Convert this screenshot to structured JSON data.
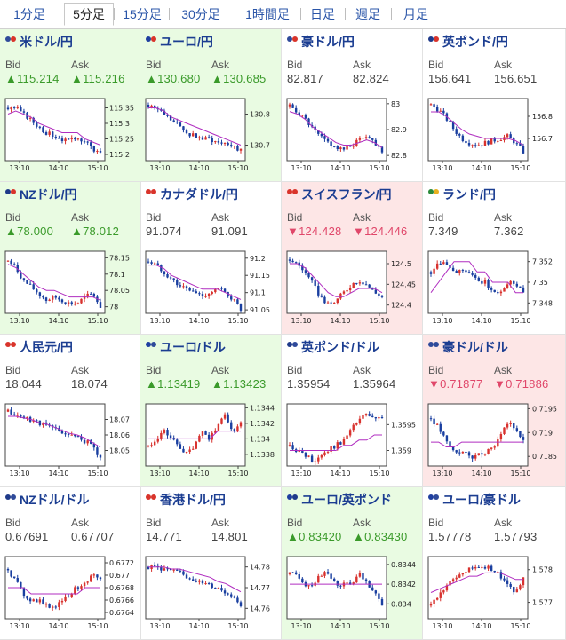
{
  "tabs": [
    "1分足",
    "5分足",
    "15分足",
    "30分足",
    "1時間足",
    "日足",
    "週足",
    "月足"
  ],
  "active_tab": "5分足",
  "bid_label": "Bid",
  "ask_label": "Ask",
  "time_ticks": [
    "13:10",
    "14:10",
    "15:10"
  ],
  "colors": {
    "up_bg": "#e9fbe2",
    "down_bg": "#fde6e6",
    "up_text": "#3a9a2a",
    "down_text": "#e0476a",
    "bull": "#d8322e",
    "bear": "#1a3fa0",
    "ma": "#b02ec0",
    "ma2": "#2aa0a0"
  },
  "pairs": [
    {
      "name": "米ドル/円",
      "bid": "▲115.214",
      "ask": "▲115.216",
      "state": "up",
      "flags": [
        "#2f4a9a",
        "#d9342b"
      ],
      "chart_data": {
        "type": "candlestick",
        "y_ticks": [
          "115.35",
          "115.3",
          "115.25",
          "115.2"
        ],
        "y_range": [
          115.18,
          115.38
        ],
        "trend": [
          115.35,
          115.35,
          115.33,
          115.31,
          115.29,
          115.27,
          115.26,
          115.25,
          115.24,
          115.26,
          115.24,
          115.22,
          115.2
        ],
        "ma": [
          115.33,
          115.34,
          115.33,
          115.32,
          115.3,
          115.29,
          115.28,
          115.27,
          115.27,
          115.27,
          115.25,
          115.24,
          115.23
        ]
      }
    },
    {
      "name": "ユーロ/円",
      "bid": "▲130.680",
      "ask": "▲130.685",
      "state": "up",
      "flags": [
        "#1f3fa0",
        "#d9342b"
      ],
      "chart_data": {
        "type": "candlestick",
        "y_ticks": [
          "130.8",
          "130.7"
        ],
        "y_range": [
          130.65,
          130.85
        ],
        "trend": [
          130.83,
          130.82,
          130.8,
          130.78,
          130.76,
          130.74,
          130.73,
          130.72,
          130.72,
          130.71,
          130.71,
          130.7,
          130.68
        ],
        "ma": [
          130.82,
          130.82,
          130.81,
          130.79,
          130.78,
          130.77,
          130.76,
          130.75,
          130.74,
          130.73,
          130.72,
          130.71,
          130.7
        ]
      }
    },
    {
      "name": "豪ドル/円",
      "bid": "82.817",
      "ask": "82.824",
      "state": "none",
      "flags": [
        "#2f4a9a",
        "#d9342b"
      ],
      "chart_data": {
        "type": "candlestick",
        "y_ticks": [
          "83",
          "82.9",
          "82.8"
        ],
        "y_range": [
          82.78,
          83.02
        ],
        "trend": [
          82.99,
          82.97,
          82.94,
          82.9,
          82.87,
          82.85,
          82.83,
          82.82,
          82.84,
          82.86,
          82.88,
          82.85,
          82.82
        ],
        "ma": [
          82.97,
          82.96,
          82.94,
          82.91,
          82.89,
          82.87,
          82.85,
          82.84,
          82.84,
          82.85,
          82.86,
          82.85,
          82.83
        ]
      }
    },
    {
      "name": "英ポンド/円",
      "bid": "156.641",
      "ask": "156.651",
      "state": "none",
      "flags": [
        "#1f3a8a",
        "#d9342b"
      ],
      "chart_data": {
        "type": "candlestick",
        "y_ticks": [
          "156.8",
          "156.7"
        ],
        "y_range": [
          156.6,
          156.88
        ],
        "trend": [
          156.85,
          156.83,
          156.79,
          156.74,
          156.7,
          156.68,
          156.67,
          156.68,
          156.69,
          156.7,
          156.71,
          156.68,
          156.64
        ],
        "ma": [
          156.82,
          156.82,
          156.8,
          156.77,
          156.74,
          156.72,
          156.71,
          156.7,
          156.7,
          156.7,
          156.7,
          156.69,
          156.67
        ]
      }
    },
    {
      "name": "NZドル/円",
      "bid": "▲78.000",
      "ask": "▲78.012",
      "state": "up",
      "flags": [
        "#1f3a8a",
        "#d9342b"
      ],
      "chart_data": {
        "type": "candlestick",
        "y_ticks": [
          "78.15",
          "78.1",
          "78.05",
          "78"
        ],
        "y_range": [
          77.98,
          78.17
        ],
        "trend": [
          78.14,
          78.12,
          78.08,
          78.06,
          78.04,
          78.02,
          78.03,
          78.02,
          78.01,
          78.01,
          78.03,
          78.04,
          78.0
        ],
        "ma": [
          78.13,
          78.12,
          78.1,
          78.08,
          78.06,
          78.05,
          78.05,
          78.04,
          78.03,
          78.03,
          78.03,
          78.03,
          78.02
        ]
      }
    },
    {
      "name": "カナダドル/円",
      "bid": "91.074",
      "ask": "91.091",
      "state": "none",
      "flags": [
        "#d9342b",
        "#d9342b"
      ],
      "chart_data": {
        "type": "candlestick",
        "y_ticks": [
          "91.2",
          "91.15",
          "91.1",
          "91.05"
        ],
        "y_range": [
          91.04,
          91.22
        ],
        "trend": [
          91.19,
          91.18,
          91.16,
          91.14,
          91.12,
          91.11,
          91.1,
          91.09,
          91.1,
          91.11,
          91.1,
          91.08,
          91.05
        ],
        "ma": [
          91.18,
          91.18,
          91.17,
          91.15,
          91.14,
          91.13,
          91.12,
          91.11,
          91.11,
          91.11,
          91.1,
          91.09,
          91.08
        ]
      }
    },
    {
      "name": "スイスフラン/円",
      "bid": "▼124.428",
      "ask": "▼124.446",
      "state": "down",
      "flags": [
        "#d9342b",
        "#d9342b"
      ],
      "chart_data": {
        "type": "candlestick",
        "y_ticks": [
          "124.5",
          "124.45",
          "124.4"
        ],
        "y_range": [
          124.38,
          124.53
        ],
        "trend": [
          124.51,
          124.5,
          124.48,
          124.45,
          124.42,
          124.4,
          124.41,
          124.43,
          124.45,
          124.46,
          124.45,
          124.43,
          124.42
        ],
        "ma": [
          124.5,
          124.5,
          124.49,
          124.47,
          124.45,
          124.43,
          124.42,
          124.42,
          124.43,
          124.44,
          124.44,
          124.44,
          124.43
        ]
      }
    },
    {
      "name": "ランド/円",
      "bid": "7.349",
      "ask": "7.362",
      "state": "none",
      "flags": [
        "#2b8a3a",
        "#e8b020"
      ],
      "chart_data": {
        "type": "candlestick",
        "y_ticks": [
          "7.352",
          "7.35",
          "7.348"
        ],
        "y_range": [
          7.347,
          7.353
        ],
        "trend": [
          7.351,
          7.352,
          7.352,
          7.351,
          7.351,
          7.351,
          7.35,
          7.35,
          7.349,
          7.349,
          7.35,
          7.35,
          7.349
        ],
        "ma": [
          7.349,
          7.35,
          7.351,
          7.352,
          7.352,
          7.352,
          7.351,
          7.351,
          7.35,
          7.35,
          7.35,
          7.349,
          7.349
        ]
      }
    },
    {
      "name": "人民元/円",
      "bid": "18.044",
      "ask": "18.074",
      "state": "none",
      "flags": [
        "#d9342b",
        "#d9342b"
      ],
      "chart_data": {
        "type": "candlestick",
        "y_ticks": [
          "18.07",
          "18.06",
          "18.05"
        ],
        "y_range": [
          18.04,
          18.08
        ],
        "trend": [
          18.075,
          18.073,
          18.071,
          18.07,
          18.068,
          18.066,
          18.064,
          18.062,
          18.06,
          18.058,
          18.056,
          18.053,
          18.045
        ],
        "ma": [
          18.072,
          18.072,
          18.071,
          18.07,
          18.068,
          18.067,
          18.065,
          18.063,
          18.061,
          18.06,
          18.058,
          18.055,
          18.052
        ]
      }
    },
    {
      "name": "ユーロ/ドル",
      "bid": "▲1.13419",
      "ask": "▲1.13423",
      "state": "up",
      "flags": [
        "#1f3fa0",
        "#2f4a9a"
      ],
      "chart_data": {
        "type": "candlestick",
        "y_ticks": [
          "1.1344",
          "1.1342",
          "1.134",
          "1.1338"
        ],
        "y_range": [
          1.13365,
          1.13445
        ],
        "trend": [
          1.1339,
          1.134,
          1.1341,
          1.134,
          1.1339,
          1.1338,
          1.1339,
          1.1341,
          1.134,
          1.1342,
          1.1343,
          1.1341,
          1.1342
        ],
        "ma": [
          1.134,
          1.134,
          1.134,
          1.134,
          1.134,
          1.134,
          1.134,
          1.134,
          1.134,
          1.1341,
          1.1341,
          1.1341,
          1.1341
        ]
      }
    },
    {
      "name": "英ポンド/ドル",
      "bid": "1.35954",
      "ask": "1.35964",
      "state": "none",
      "flags": [
        "#1f3a8a",
        "#2f4a9a"
      ],
      "chart_data": {
        "type": "candlestick",
        "y_ticks": [
          "1.3595",
          "1.359"
        ],
        "y_range": [
          1.3587,
          1.3599
        ],
        "trend": [
          1.3591,
          1.359,
          1.3589,
          1.3588,
          1.3589,
          1.359,
          1.3591,
          1.3592,
          1.3594,
          1.3596,
          1.3597,
          1.3596,
          1.3596
        ],
        "ma": [
          1.359,
          1.359,
          1.359,
          1.359,
          1.359,
          1.359,
          1.359,
          1.3591,
          1.3591,
          1.3592,
          1.3592,
          1.3593,
          1.3593
        ]
      }
    },
    {
      "name": "豪ドル/ドル",
      "bid": "▼0.71877",
      "ask": "▼0.71886",
      "state": "down",
      "flags": [
        "#2f4a9a",
        "#2f4a9a"
      ],
      "chart_data": {
        "type": "candlestick",
        "y_ticks": [
          "0.7195",
          "0.719",
          "0.7185"
        ],
        "y_range": [
          0.7183,
          0.7196
        ],
        "trend": [
          0.7193,
          0.7191,
          0.7188,
          0.7186,
          0.7186,
          0.7185,
          0.7185,
          0.7186,
          0.7187,
          0.7189,
          0.7192,
          0.7191,
          0.7188
        ],
        "ma": [
          0.7188,
          0.7188,
          0.7187,
          0.7187,
          0.7188,
          0.7188,
          0.7188,
          0.7188,
          0.7188,
          0.7188,
          0.7188,
          0.7188,
          0.7188
        ]
      }
    },
    {
      "name": "NZドル/ドル",
      "bid": "0.67691",
      "ask": "0.67707",
      "state": "none",
      "flags": [
        "#1f3a8a",
        "#2f4a9a"
      ],
      "chart_data": {
        "type": "candlestick",
        "y_ticks": [
          "0.6772",
          "0.677",
          "0.6768",
          "0.6766",
          "0.6764"
        ],
        "y_range": [
          0.6763,
          0.6773
        ],
        "trend": [
          0.6771,
          0.6769,
          0.6767,
          0.6766,
          0.6766,
          0.6765,
          0.6765,
          0.6766,
          0.6767,
          0.6768,
          0.6769,
          0.677,
          0.6769
        ],
        "ma": [
          0.6768,
          0.6768,
          0.6768,
          0.6767,
          0.6767,
          0.6767,
          0.6767,
          0.6767,
          0.6767,
          0.6767,
          0.6768,
          0.6768,
          0.6768
        ]
      }
    },
    {
      "name": "香港ドル/円",
      "bid": "14.771",
      "ask": "14.801",
      "state": "none",
      "flags": [
        "#d9342b",
        "#d9342b"
      ],
      "chart_data": {
        "type": "candlestick",
        "y_ticks": [
          "14.78",
          "14.77",
          "14.76"
        ],
        "y_range": [
          14.755,
          14.785
        ],
        "trend": [
          14.78,
          14.78,
          14.779,
          14.778,
          14.777,
          14.775,
          14.774,
          14.772,
          14.771,
          14.77,
          14.768,
          14.766,
          14.762
        ],
        "ma": [
          14.78,
          14.78,
          14.78,
          14.779,
          14.779,
          14.778,
          14.777,
          14.776,
          14.775,
          14.773,
          14.772,
          14.77,
          14.768
        ]
      }
    },
    {
      "name": "ユーロ/英ポンド",
      "bid": "▲0.83420",
      "ask": "▲0.83430",
      "state": "up",
      "flags": [
        "#1f3fa0",
        "#1f3a8a"
      ],
      "chart_data": {
        "type": "candlestick",
        "y_ticks": [
          "0.8344",
          "0.8342",
          "0.834"
        ],
        "y_range": [
          0.83385,
          0.83448
        ],
        "trend": [
          0.8343,
          0.8343,
          0.8342,
          0.8342,
          0.8343,
          0.8343,
          0.8342,
          0.8342,
          0.8342,
          0.8343,
          0.8342,
          0.8341,
          0.834
        ],
        "ma": [
          0.8342,
          0.8342,
          0.8342,
          0.8342,
          0.8342,
          0.8342,
          0.8342,
          0.8342,
          0.8342,
          0.8342,
          0.8342,
          0.8342,
          0.8342
        ]
      }
    },
    {
      "name": "ユーロ/豪ドル",
      "bid": "1.57778",
      "ask": "1.57793",
      "state": "none",
      "flags": [
        "#1f3fa0",
        "#2f4a9a"
      ],
      "chart_data": {
        "type": "candlestick",
        "y_ticks": [
          "1.578",
          "1.577"
        ],
        "y_range": [
          1.5765,
          1.5784
        ],
        "trend": [
          1.5769,
          1.5772,
          1.5775,
          1.5777,
          1.5779,
          1.578,
          1.5781,
          1.5781,
          1.578,
          1.5778,
          1.5775,
          1.5773,
          1.5778
        ],
        "ma": [
          1.5773,
          1.5774,
          1.5775,
          1.5776,
          1.5777,
          1.5778,
          1.5778,
          1.5779,
          1.5779,
          1.5779,
          1.5778,
          1.5777,
          1.5777
        ]
      }
    }
  ]
}
